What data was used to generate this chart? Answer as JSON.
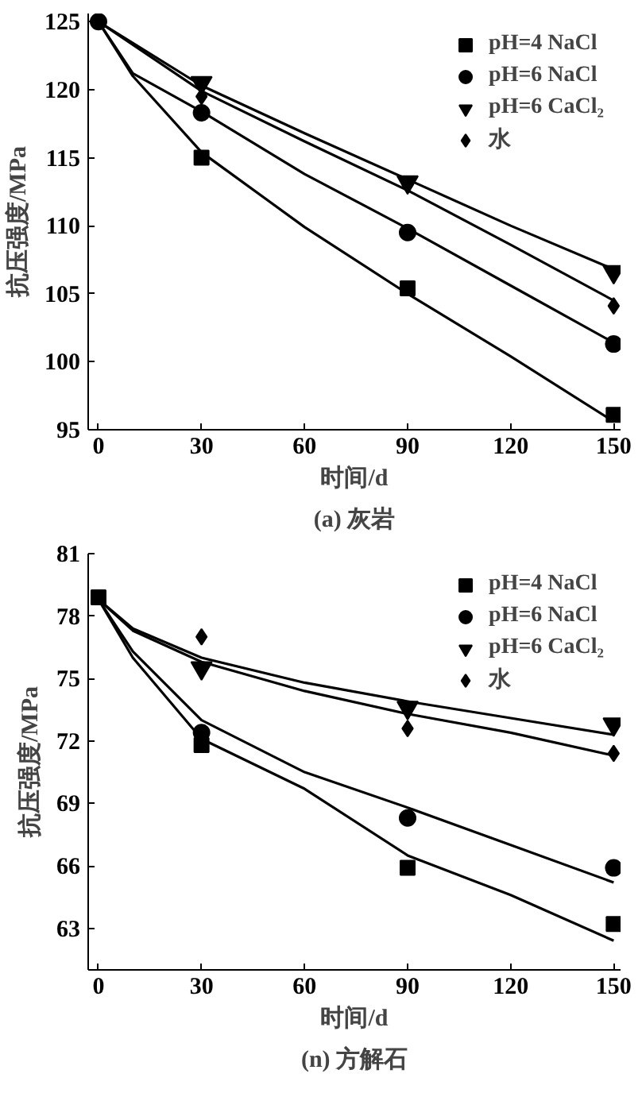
{
  "chart_data": [
    {
      "type": "scatter",
      "xlabel": "时间/d",
      "ylabel": "抗压强度/MPa",
      "annotations": [
        "(a) 灰岩"
      ],
      "x": [
        0,
        30,
        90,
        150
      ],
      "xlim": [
        -3,
        152
      ],
      "xticks": [
        0,
        30,
        60,
        90,
        120,
        150
      ],
      "ylim": [
        95,
        125.6
      ],
      "yticks": [
        95,
        100,
        105,
        110,
        115,
        120,
        125
      ],
      "grid": false,
      "legend": "top right",
      "series": [
        {
          "name": "pH=4 NaCl",
          "color": "#000000",
          "marker": "square",
          "values": [
            null,
            115.0,
            105.4,
            96.1
          ]
        },
        {
          "name": "pH=6 NaCl",
          "color": "#000000",
          "marker": "circle",
          "values": [
            125,
            118.3,
            109.5,
            101.3
          ]
        },
        {
          "name": "pH=6 CaCl₂",
          "color": "#000000",
          "marker": "triangle",
          "values": [
            null,
            120.5,
            113.2,
            106.6
          ]
        },
        {
          "name": "水",
          "color": "#000000",
          "marker": "diamond",
          "values": [
            null,
            119.5,
            113.0,
            104.1
          ]
        },
        {
          "type": "line",
          "color": "#000000",
          "x": [
            0,
            10,
            30,
            60,
            90,
            120,
            150
          ],
          "values": [
            125,
            121.0,
            115.4,
            109.9,
            105.0,
            100.4,
            95.6
          ]
        },
        {
          "type": "line",
          "color": "#000000",
          "x": [
            0,
            10,
            30,
            60,
            90,
            120,
            150
          ],
          "values": [
            125,
            121.2,
            118.4,
            113.8,
            109.8,
            105.6,
            101.4
          ]
        },
        {
          "type": "line",
          "color": "#000000",
          "x": [
            0,
            30,
            60,
            90,
            120,
            150
          ],
          "values": [
            125,
            120.3,
            116.8,
            113.4,
            110.0,
            106.8
          ]
        },
        {
          "type": "line",
          "color": "#000000",
          "x": [
            0,
            30,
            60,
            90,
            120,
            150
          ],
          "values": [
            125,
            119.9,
            116.2,
            112.6,
            108.6,
            104.5
          ]
        }
      ]
    },
    {
      "type": "scatter",
      "xlabel": "时间/d",
      "ylabel": "抗压强度/MPa",
      "annotations": [
        "(n) 方解石"
      ],
      "x": [
        0,
        30,
        90,
        150
      ],
      "xlim": [
        -3,
        152
      ],
      "xticks": [
        0,
        30,
        60,
        90,
        120,
        150
      ],
      "ylim": [
        61,
        81
      ],
      "yticks": [
        63,
        66,
        69,
        72,
        75,
        78,
        81
      ],
      "grid": false,
      "legend": "top right",
      "series": [
        {
          "name": "pH=4 NaCl",
          "color": "#000000",
          "marker": "square",
          "values": [
            78.9,
            71.8,
            65.9,
            63.2
          ]
        },
        {
          "name": "pH=6 NaCl",
          "color": "#000000",
          "marker": "circle",
          "values": [
            null,
            72.4,
            68.3,
            65.9
          ]
        },
        {
          "name": "pH=6 CaCl₂",
          "color": "#000000",
          "marker": "triangle",
          "values": [
            null,
            75.5,
            73.6,
            72.8
          ]
        },
        {
          "name": "水",
          "color": "#000000",
          "marker": "diamond",
          "values": [
            null,
            77.0,
            72.6,
            71.4
          ]
        },
        {
          "type": "line",
          "color": "#000000",
          "x": [
            0,
            10,
            30,
            60,
            90,
            120,
            150
          ],
          "values": [
            78.8,
            76.0,
            72.1,
            69.7,
            66.5,
            64.6,
            62.4
          ]
        },
        {
          "type": "line",
          "color": "#000000",
          "x": [
            0,
            10,
            30,
            60,
            90,
            120,
            150
          ],
          "values": [
            78.8,
            76.3,
            73.0,
            70.5,
            68.8,
            67.0,
            65.2
          ]
        },
        {
          "type": "line",
          "color": "#000000",
          "x": [
            0,
            10,
            30,
            60,
            90,
            120,
            150
          ],
          "values": [
            78.8,
            77.4,
            76.0,
            74.8,
            73.9,
            73.1,
            72.3
          ]
        },
        {
          "type": "line",
          "color": "#000000",
          "x": [
            0,
            10,
            30,
            60,
            90,
            120,
            150
          ],
          "values": [
            78.8,
            77.3,
            75.8,
            74.4,
            73.3,
            72.4,
            71.3
          ]
        }
      ]
    }
  ]
}
